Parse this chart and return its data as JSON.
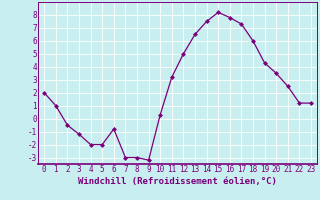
{
  "x": [
    0,
    1,
    2,
    3,
    4,
    5,
    6,
    7,
    8,
    9,
    10,
    11,
    12,
    13,
    14,
    15,
    16,
    17,
    18,
    19,
    20,
    21,
    22,
    23
  ],
  "y": [
    2,
    1,
    -0.5,
    -1.2,
    -2,
    -2,
    -0.8,
    -3,
    -3,
    -3.2,
    0.3,
    3.2,
    5,
    6.5,
    7.5,
    8.2,
    7.8,
    7.3,
    6,
    4.3,
    3.5,
    2.5,
    1.2,
    1.2
  ],
  "line_color": "#7b007b",
  "marker": "D",
  "marker_size": 2.0,
  "bg_color": "#c8eef0",
  "grid_color": "#b0d8dc",
  "xlabel": "Windchill (Refroidissement éolien,°C)",
  "xlim": [
    -0.5,
    23.5
  ],
  "ylim": [
    -3.5,
    9.0
  ],
  "yticks": [
    -3,
    -2,
    -1,
    0,
    1,
    2,
    3,
    4,
    5,
    6,
    7,
    8
  ],
  "xticks": [
    0,
    1,
    2,
    3,
    4,
    5,
    6,
    7,
    8,
    9,
    10,
    11,
    12,
    13,
    14,
    15,
    16,
    17,
    18,
    19,
    20,
    21,
    22,
    23
  ],
  "xlabel_fontsize": 6.5,
  "tick_fontsize": 5.5
}
